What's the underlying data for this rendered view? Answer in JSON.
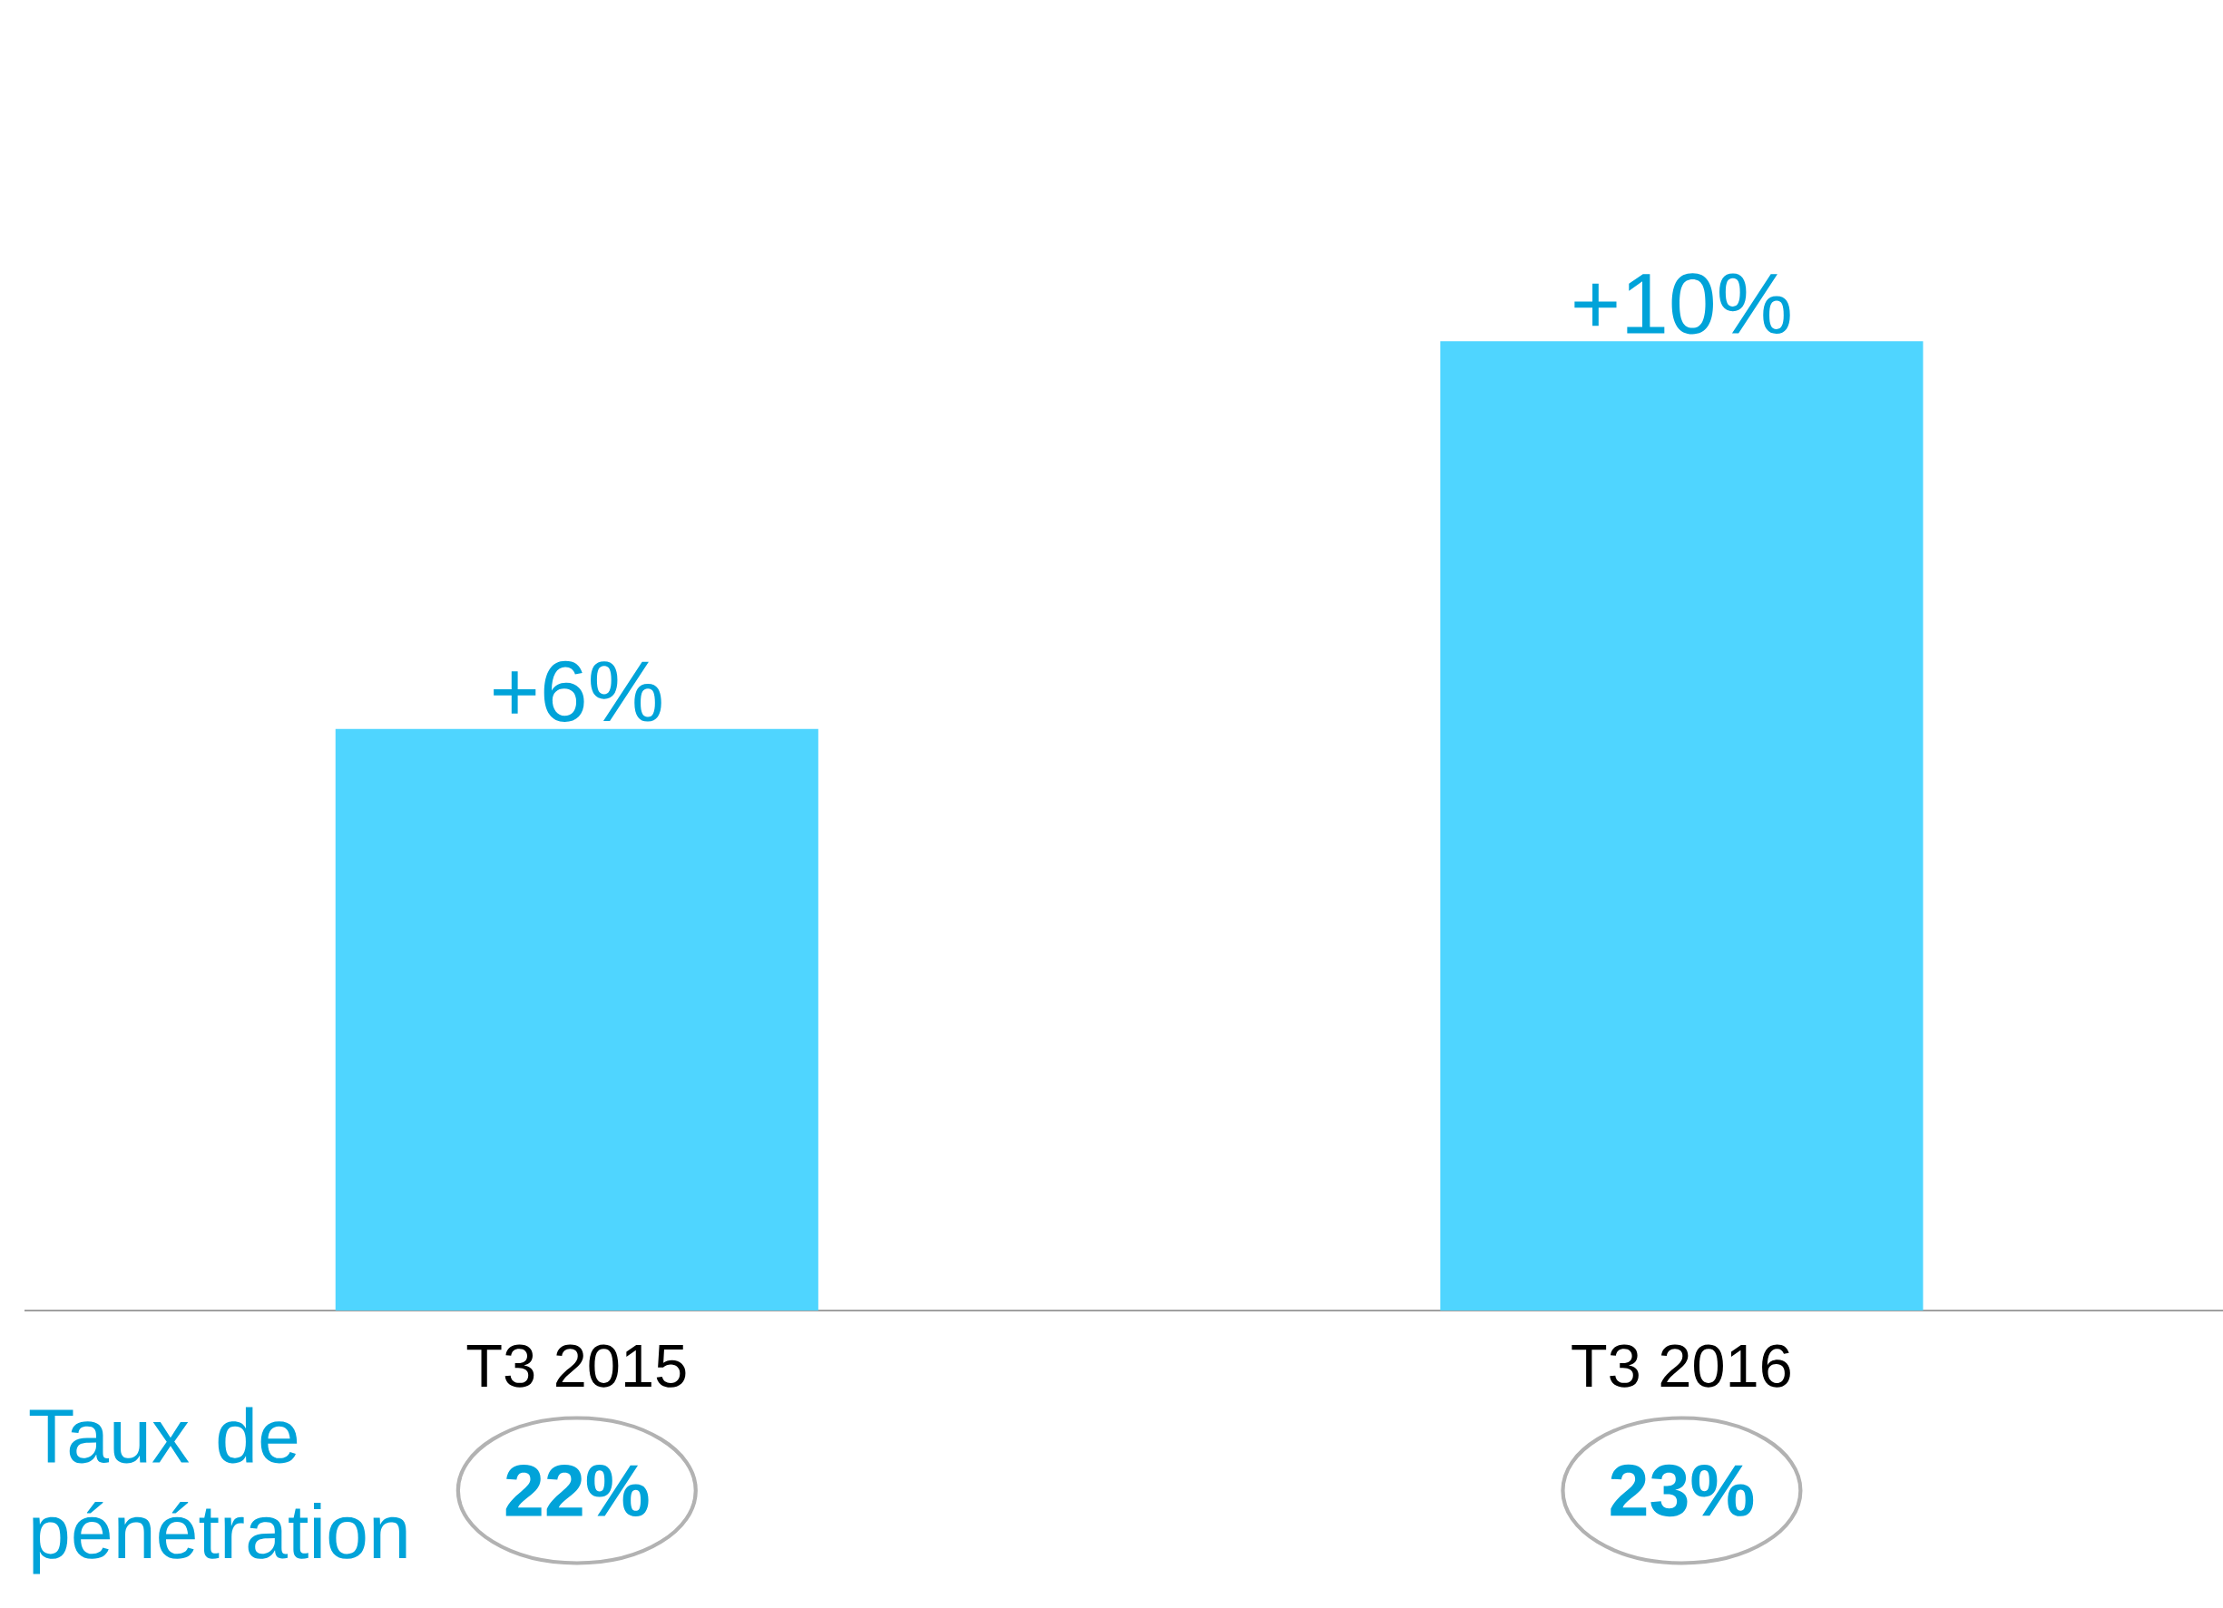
{
  "chart_data": {
    "type": "bar",
    "categories": [
      "T3 2015",
      "T3 2016"
    ],
    "values": [
      6,
      10
    ],
    "color": "#4fd5ff",
    "value_labels": [
      "+6%",
      "+10%"
    ],
    "annotations": [
      "Taux de pénétration",
      "22%",
      "23%"
    ]
  }
}
